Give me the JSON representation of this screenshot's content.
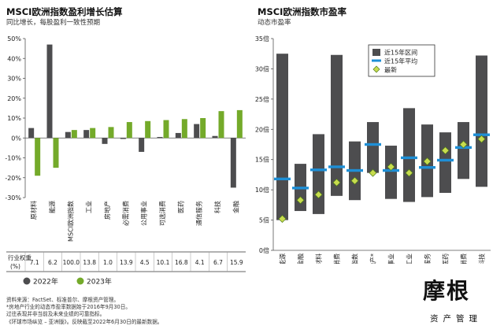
{
  "colors": {
    "dark_bar": "#4d4d4f",
    "green_bar": "#74aa2a",
    "blue_avg": "#1e8fd6",
    "diamond_fill": "#c8dc4e",
    "diamond_stroke": "#4e7c1a",
    "axis": "#555555"
  },
  "left_chart": {
    "title": "MSCI欧洲指数盈利增长估算",
    "subtitle": "同比增长，每股盈利一致性预期",
    "weight_label_line1": "行业权重",
    "weight_label_line2": "(%)",
    "legend": [
      {
        "label": "2022年",
        "color": "#4d4d4f"
      },
      {
        "label": "2023年",
        "color": "#74aa2a"
      }
    ]
  },
  "right_chart": {
    "title": "MSCI欧洲指数市盈率",
    "subtitle": "动态市盈率",
    "legend": [
      {
        "label": "近15年区间",
        "kind": "range"
      },
      {
        "label": "近15年平均",
        "kind": "average"
      },
      {
        "label": "最新",
        "kind": "latest"
      }
    ]
  },
  "chart_data": [
    {
      "type": "bar",
      "title": "MSCI欧洲指数盈利增长估算",
      "subtitle": "同比增长，每股盈利一致性预期",
      "categories": [
        "原材料",
        "能源",
        "MSCI欧洲指数",
        "工业",
        "房地产",
        "必需消费",
        "公用事业",
        "可选消费",
        "医药",
        "通信服务",
        "科技",
        "金融"
      ],
      "series": [
        {
          "name": "2022年",
          "values": [
            5,
            47,
            3,
            4,
            -3,
            -0.5,
            -7,
            0.5,
            2.5,
            7,
            1,
            -25
          ]
        },
        {
          "name": "2023年",
          "values": [
            -19,
            -15,
            4,
            5,
            5.5,
            8,
            8.5,
            9,
            9.5,
            10,
            13.5,
            14
          ]
        }
      ],
      "weights": [
        "7.1",
        "6.2",
        "100.0",
        "13.8",
        "1.0",
        "13.9",
        "4.5",
        "10.1",
        "16.8",
        "4.1",
        "6.7",
        "15.9"
      ],
      "ylim": [
        -30,
        50
      ],
      "yticks": [
        -30,
        -20,
        -10,
        0,
        10,
        20,
        30,
        40,
        50
      ],
      "ytick_labels": [
        "-30%",
        "-20%",
        "-10%",
        "0%",
        "10%",
        "20%",
        "30%",
        "40%",
        "50%"
      ],
      "xlabel": "",
      "ylabel": ""
    },
    {
      "type": "range",
      "title": "MSCI欧洲指数市盈率",
      "subtitle": "动态市盈率",
      "categories": [
        "能源",
        "金融",
        "原材料",
        "可选消费",
        "MSCI欧洲指数",
        "房地产*",
        "公用事业",
        "工业",
        "通信服务",
        "医药",
        "必需消费",
        "科技"
      ],
      "range_low": [
        5,
        6.5,
        6,
        9,
        8.3,
        12.8,
        8.5,
        8,
        8.8,
        9.5,
        11.8,
        10.5
      ],
      "range_high": [
        32.5,
        14.3,
        19.2,
        32.3,
        18,
        21.2,
        17.3,
        23.5,
        20.8,
        19.5,
        21.2,
        32.2
      ],
      "average": [
        11.8,
        10.3,
        13.3,
        13.8,
        13.2,
        17.5,
        13.2,
        15.3,
        13.7,
        14.9,
        17,
        19.1
      ],
      "latest": [
        5.2,
        8.3,
        9.2,
        11.2,
        11.5,
        12.8,
        13.8,
        12.8,
        14.7,
        16.5,
        17.5,
        18.4
      ],
      "ylim": [
        0,
        35
      ],
      "yticks": [
        0,
        5,
        10,
        15,
        20,
        25,
        30,
        35
      ],
      "ytick_labels": [
        "0倍",
        "5倍",
        "10倍",
        "15倍",
        "20倍",
        "25倍",
        "30倍",
        "35倍"
      ],
      "xlabel": "",
      "ylabel": ""
    }
  ],
  "footnotes": [
    "资料来源：FactSet、标准普尔、摩根资产管理。",
    "*房地产行业的动态市盈率数据始于2016年9月30日。",
    "过往表现并非当前及未来业绩的可靠指标。",
    "《环球市场纵览 – 亚洲版》。反映截至2022年6月30日的最新数据。"
  ],
  "logo": {
    "main": "摩根",
    "sub": "资产管理"
  }
}
